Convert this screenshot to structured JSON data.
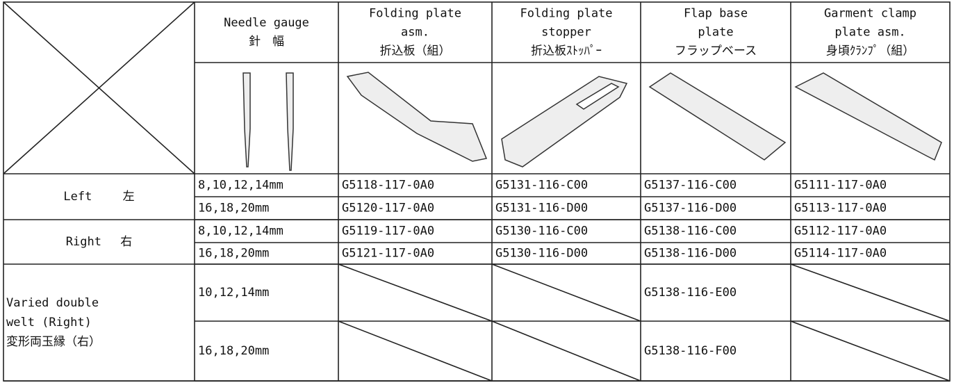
{
  "table": {
    "headers": [
      [
        "Needle gauge",
        "針　幅"
      ],
      [
        "Folding plate",
        "asm.",
        "折込板（組）"
      ],
      [
        "Folding plate",
        "stopper",
        "折込板ｽﾄｯﾊﾟｰ"
      ],
      [
        "Flap base",
        "plate",
        "フラップベース"
      ],
      [
        "Garment clamp",
        "plate asm.",
        "身頃ｸﾗﾝﾌﾟ（組）"
      ]
    ],
    "groups": [
      {
        "label": [
          "Left　　 左"
        ],
        "rows": [
          [
            "8,10,12,14mm",
            "G5118-117-0A0",
            "G5131-116-C00",
            "G5137-116-C00",
            "G5111-117-0A0"
          ],
          [
            "16,18,20mm",
            "G5120-117-0A0",
            "G5131-116-D00",
            "G5137-116-D00",
            "G5113-117-0A0"
          ]
        ]
      },
      {
        "label": [
          "Right　 右"
        ],
        "rows": [
          [
            "8,10,12,14mm",
            "G5119-117-0A0",
            "G5130-116-C00",
            "G5138-116-C00",
            "G5112-117-0A0"
          ],
          [
            "16,18,20mm",
            "G5121-117-0A0",
            "G5130-116-D00",
            "G5138-116-D00",
            "G5114-117-0A0"
          ]
        ]
      },
      {
        "label": [
          "Varied double",
          "welt (Right)",
          "変形両玉縁（右）"
        ],
        "rows": [
          [
            "10,12,14mm",
            null,
            null,
            "G5138-116-E00",
            null
          ],
          [
            "16,18,20mm",
            null,
            null,
            "G5138-116-F00",
            null
          ]
        ]
      }
    ]
  }
}
